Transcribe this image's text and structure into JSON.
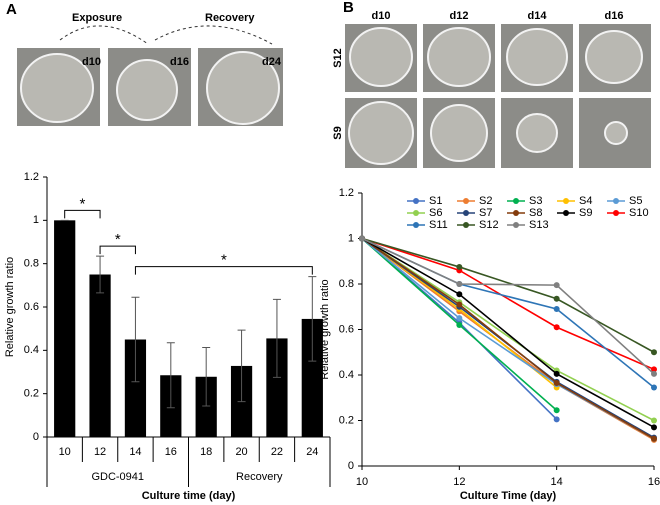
{
  "panel_a": {
    "label": "A",
    "arrows": [
      "Exposure",
      "Recovery"
    ],
    "images": [
      "d10",
      "d16",
      "d24"
    ]
  },
  "panel_b": {
    "label": "B",
    "columns": [
      "d10",
      "d12",
      "d14",
      "d16"
    ],
    "rows": [
      "S12",
      "S9"
    ]
  },
  "chart_data": [
    {
      "type": "bar",
      "ylabel": "Relative growth ratio",
      "xlabel": "Culture time (day)",
      "categories": [
        "10",
        "12",
        "14",
        "16",
        "18",
        "20",
        "22",
        "24"
      ],
      "groups": [
        "GDC-0941",
        "Recovery"
      ],
      "values": [
        1,
        0.75,
        0.45,
        0.285,
        0.278,
        0.328,
        0.455,
        0.545
      ],
      "errors": [
        0,
        0.085,
        0.195,
        0.15,
        0.135,
        0.165,
        0.18,
        0.195
      ],
      "color": "#000000",
      "ylim": [
        0,
        1.2
      ],
      "yticks": [
        0,
        0.2,
        0.4,
        0.6,
        0.8,
        1,
        1.2
      ],
      "annotations": [
        "*",
        "*",
        "*"
      ]
    },
    {
      "type": "line",
      "ylabel": "Relative growth ratio",
      "xlabel": "Culture Time (day)",
      "x": [
        10,
        12,
        14,
        16
      ],
      "xlim": [
        10,
        16
      ],
      "xticks": [
        10,
        12,
        14,
        16
      ],
      "ylim": [
        0,
        1.2
      ],
      "yticks": [
        0,
        0.2,
        0.4,
        0.6,
        0.8,
        1,
        1.2
      ],
      "series": [
        {
          "name": "S1",
          "color": "#4472c4",
          "values": [
            1,
            0.63,
            0.205,
            null
          ]
        },
        {
          "name": "S2",
          "color": "#ed7d31",
          "values": [
            1,
            0.68,
            0.36,
            0.115
          ]
        },
        {
          "name": "S3",
          "color": "#00b050",
          "values": [
            1,
            0.62,
            0.245,
            null
          ]
        },
        {
          "name": "S4",
          "color": "#ffc000",
          "values": [
            1,
            0.69,
            0.345,
            null
          ]
        },
        {
          "name": "S5",
          "color": "#5b9bd5",
          "values": [
            1,
            0.65,
            0.36,
            0.12
          ]
        },
        {
          "name": "S6",
          "color": "#92d050",
          "values": [
            1,
            0.72,
            0.42,
            0.2
          ]
        },
        {
          "name": "S7",
          "color": "#264478",
          "values": [
            1,
            0.7,
            0.37,
            0.125
          ]
        },
        {
          "name": "S8",
          "color": "#843c0c",
          "values": [
            1,
            0.71,
            0.365,
            0.12
          ]
        },
        {
          "name": "S9",
          "color": "#000000",
          "values": [
            1,
            0.755,
            0.405,
            0.17
          ]
        },
        {
          "name": "S10",
          "color": "#ff0000",
          "values": [
            1,
            0.86,
            0.61,
            0.425
          ]
        },
        {
          "name": "S11",
          "color": "#2e75b6",
          "values": [
            1,
            0.8,
            0.69,
            0.345
          ]
        },
        {
          "name": "S12",
          "color": "#385723",
          "values": [
            1,
            0.875,
            0.735,
            0.5
          ]
        },
        {
          "name": "S13",
          "color": "#808080",
          "values": [
            1,
            0.8,
            0.795,
            0.405
          ]
        }
      ]
    }
  ]
}
